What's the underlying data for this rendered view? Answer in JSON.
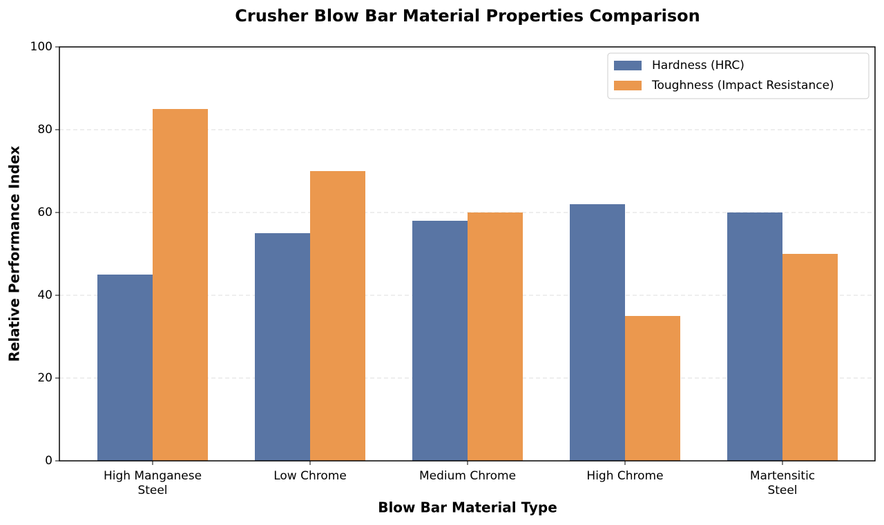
{
  "chart_data": {
    "type": "bar",
    "title": "Crusher Blow Bar Material Properties Comparison",
    "x_label": "Blow Bar Material Type",
    "y_label": "Relative Performance Index",
    "categories": [
      "High Manganese\nSteel",
      "Low Chrome",
      "Medium Chrome",
      "High Chrome",
      "Martensitic\nSteel"
    ],
    "series": [
      {
        "name": "Hardness (HRC)",
        "color": "#5975a4",
        "values": [
          45,
          55,
          58,
          62,
          60
        ]
      },
      {
        "name": "Toughness (Impact Resistance)",
        "color": "#eb984e",
        "values": [
          85,
          70,
          60,
          35,
          50
        ]
      }
    ],
    "ylim": [
      0,
      100
    ],
    "yticks": [
      0,
      20,
      40,
      60,
      80,
      100
    ],
    "grid": true,
    "legend": "upper-right"
  }
}
